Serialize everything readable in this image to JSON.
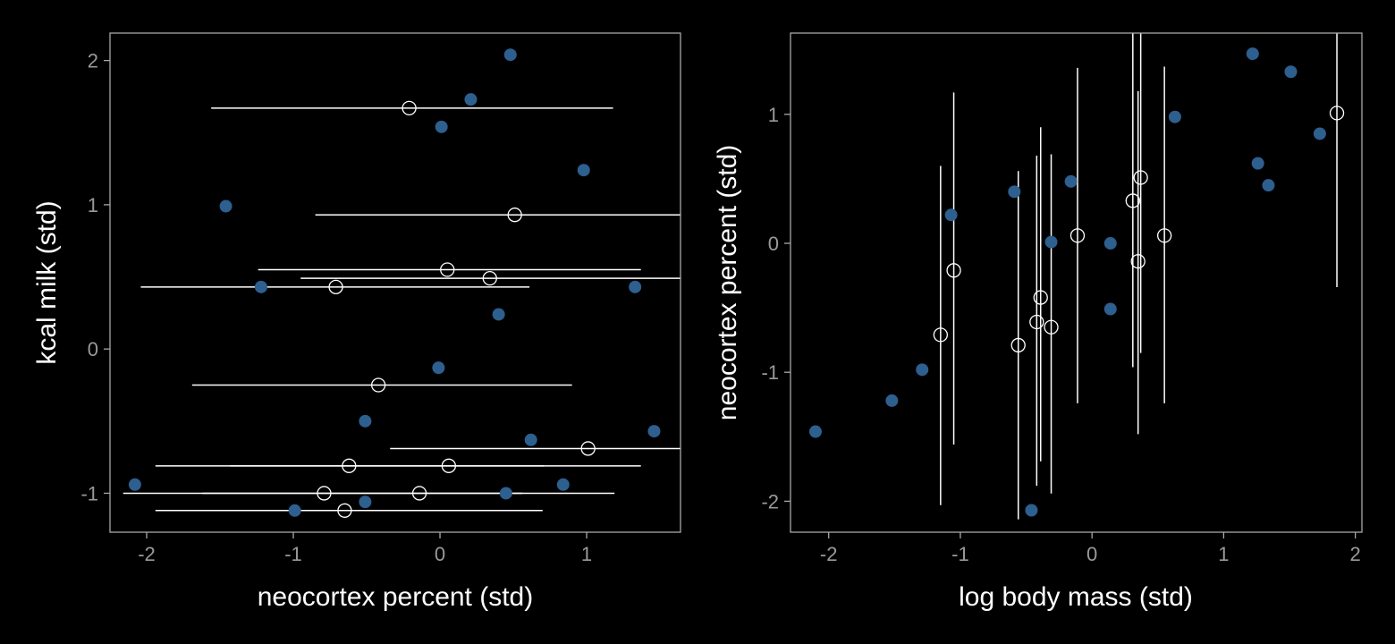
{
  "chart_data": [
    {
      "type": "scatter",
      "xlabel": "neocortex percent (std)",
      "ylabel": "kcal milk (std)",
      "xlim": [
        -2.25,
        1.64
      ],
      "ylim": [
        -1.27,
        2.19
      ],
      "xticks": [
        -2,
        -1,
        0,
        1
      ],
      "yticks": [
        -1,
        0,
        1,
        2
      ],
      "grid": false,
      "colors": {
        "observed": "#2d5f8f",
        "imputed": "#ffffff",
        "frame": "#a8a8a8"
      },
      "observed": [
        [
          0.48,
          2.04
        ],
        [
          0.21,
          1.73
        ],
        [
          0.01,
          1.54
        ],
        [
          0.98,
          1.24
        ],
        [
          -1.46,
          0.99
        ],
        [
          -1.22,
          0.43
        ],
        [
          1.33,
          0.43
        ],
        [
          0.4,
          0.24
        ],
        [
          -0.01,
          -0.13
        ],
        [
          -0.51,
          -0.5
        ],
        [
          0.62,
          -0.63
        ],
        [
          1.46,
          -0.57
        ],
        [
          -2.08,
          -0.94
        ],
        [
          0.84,
          -0.94
        ],
        [
          0.45,
          -1.0
        ],
        [
          -0.51,
          -1.06
        ],
        [
          -0.99,
          -1.12
        ]
      ],
      "imputed": [
        {
          "x": -0.21,
          "y": 1.67,
          "lo": -1.56,
          "hi": 1.18
        },
        {
          "x": 0.51,
          "y": 0.93,
          "lo": -0.85,
          "hi": 1.9
        },
        {
          "x": 0.05,
          "y": 0.55,
          "lo": -1.24,
          "hi": 1.37
        },
        {
          "x": 0.34,
          "y": 0.49,
          "lo": -0.95,
          "hi": 1.75
        },
        {
          "x": -0.71,
          "y": 0.43,
          "lo": -2.04,
          "hi": 0.61
        },
        {
          "x": -0.42,
          "y": -0.25,
          "lo": -1.69,
          "hi": 0.9
        },
        {
          "x": 1.01,
          "y": -0.69,
          "lo": -0.34,
          "hi": 2.3
        },
        {
          "x": -0.62,
          "y": -0.81,
          "lo": -1.94,
          "hi": 0.71
        },
        {
          "x": 0.06,
          "y": -0.81,
          "lo": -1.43,
          "hi": 1.37
        },
        {
          "x": -0.79,
          "y": -1.0,
          "lo": -2.16,
          "hi": 0.56
        },
        {
          "x": -0.14,
          "y": -1.0,
          "lo": -1.62,
          "hi": 1.19
        },
        {
          "x": -0.65,
          "y": -1.12,
          "lo": -1.94,
          "hi": 0.7
        }
      ]
    },
    {
      "type": "scatter",
      "xlabel": "log body mass (std)",
      "ylabel": "neocortex percent (std)",
      "xlim": [
        -2.29,
        2.05
      ],
      "ylim": [
        -2.24,
        1.63
      ],
      "xticks": [
        -2,
        -1,
        0,
        1,
        2
      ],
      "yticks": [
        -2,
        -1,
        0,
        1
      ],
      "grid": false,
      "colors": {
        "observed": "#2d5f8f",
        "imputed": "#ffffff",
        "frame": "#a8a8a8"
      },
      "observed": [
        [
          -2.1,
          -1.46
        ],
        [
          -1.52,
          -1.22
        ],
        [
          -1.29,
          -0.98
        ],
        [
          -1.07,
          0.22
        ],
        [
          -0.59,
          0.4
        ],
        [
          -0.31,
          0.01
        ],
        [
          -0.16,
          0.48
        ],
        [
          -0.46,
          -2.07
        ],
        [
          0.14,
          0.0
        ],
        [
          0.14,
          -0.51
        ],
        [
          0.63,
          0.98
        ],
        [
          1.22,
          1.47
        ],
        [
          1.51,
          1.33
        ],
        [
          1.26,
          0.62
        ],
        [
          1.34,
          0.45
        ],
        [
          1.73,
          0.85
        ]
      ],
      "imputed": [
        {
          "x": -1.15,
          "y": -0.71,
          "lo": -2.03,
          "hi": 0.6
        },
        {
          "x": -1.05,
          "y": -0.21,
          "lo": -1.56,
          "hi": 1.17
        },
        {
          "x": -0.56,
          "y": -0.79,
          "lo": -2.14,
          "hi": 0.56
        },
        {
          "x": -0.42,
          "y": -0.61,
          "lo": -1.88,
          "hi": 0.68
        },
        {
          "x": -0.39,
          "y": -0.42,
          "lo": -1.69,
          "hi": 0.9
        },
        {
          "x": -0.31,
          "y": -0.65,
          "lo": -1.94,
          "hi": 0.69
        },
        {
          "x": -0.11,
          "y": 0.06,
          "lo": -1.24,
          "hi": 1.36
        },
        {
          "x": 0.31,
          "y": 0.33,
          "lo": -0.96,
          "hi": 1.7
        },
        {
          "x": 0.37,
          "y": 0.51,
          "lo": -0.85,
          "hi": 1.9
        },
        {
          "x": 0.35,
          "y": -0.14,
          "lo": -1.48,
          "hi": 1.18
        },
        {
          "x": 0.55,
          "y": 0.06,
          "lo": -1.24,
          "hi": 1.37
        },
        {
          "x": 1.86,
          "y": 1.01,
          "lo": -0.34,
          "hi": 2.3
        }
      ]
    }
  ]
}
